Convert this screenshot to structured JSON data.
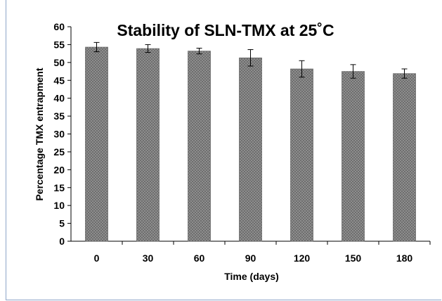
{
  "chart_data": {
    "type": "bar",
    "title": "Stability of SLN-TMX at 25˚C",
    "xlabel": "Time (days)",
    "ylabel": "Percentage TMX entrapment",
    "categories": [
      "0",
      "30",
      "60",
      "90",
      "120",
      "150",
      "180"
    ],
    "values": [
      54.3,
      53.9,
      53.2,
      51.3,
      48.2,
      47.5,
      46.9
    ],
    "errors": [
      1.3,
      1.1,
      0.8,
      2.3,
      2.3,
      1.9,
      1.3
    ],
    "ylim": [
      0,
      60
    ],
    "yticks": [
      "0",
      "5",
      "10",
      "15",
      "20",
      "25",
      "30",
      "35",
      "40",
      "45",
      "50",
      "55",
      "60"
    ],
    "grid": false,
    "legend": "none",
    "bar_color": "#8c8c8c"
  }
}
